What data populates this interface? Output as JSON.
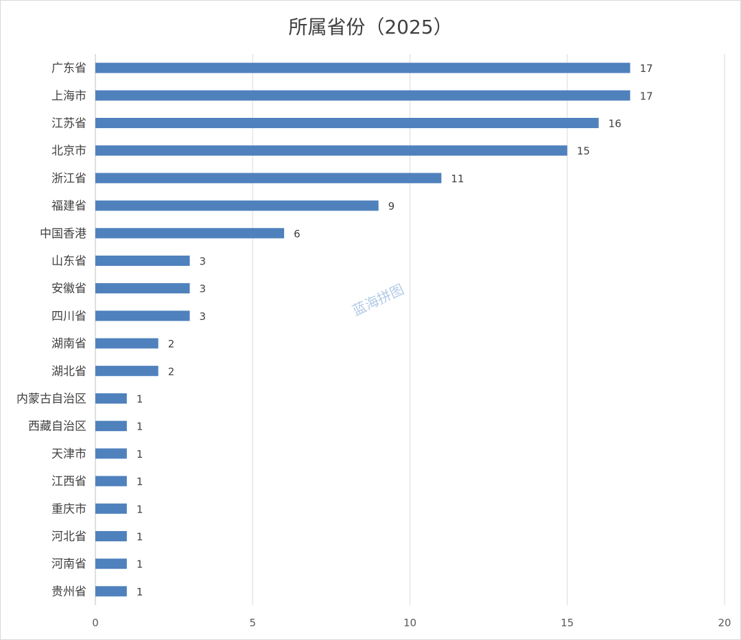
{
  "chart_data": {
    "type": "bar",
    "orientation": "horizontal",
    "title": "所属省份（2025）",
    "categories": [
      "广东省",
      "上海市",
      "江苏省",
      "北京市",
      "浙江省",
      "福建省",
      "中国香港",
      "山东省",
      "安徽省",
      "四川省",
      "湖南省",
      "湖北省",
      "内蒙古自治区",
      "西藏自治区",
      "天津市",
      "江西省",
      "重庆市",
      "河北省",
      "河南省",
      "贵州省"
    ],
    "values": [
      17,
      17,
      16,
      15,
      11,
      9,
      6,
      3,
      3,
      3,
      2,
      2,
      1,
      1,
      1,
      1,
      1,
      1,
      1,
      1
    ],
    "x_ticks": [
      "0",
      "5",
      "10",
      "15",
      "20"
    ],
    "xlim": [
      0,
      20
    ],
    "grid": true,
    "data_labels": true,
    "bar_color": "#4f81bd"
  },
  "watermark": "蓝海拼图"
}
